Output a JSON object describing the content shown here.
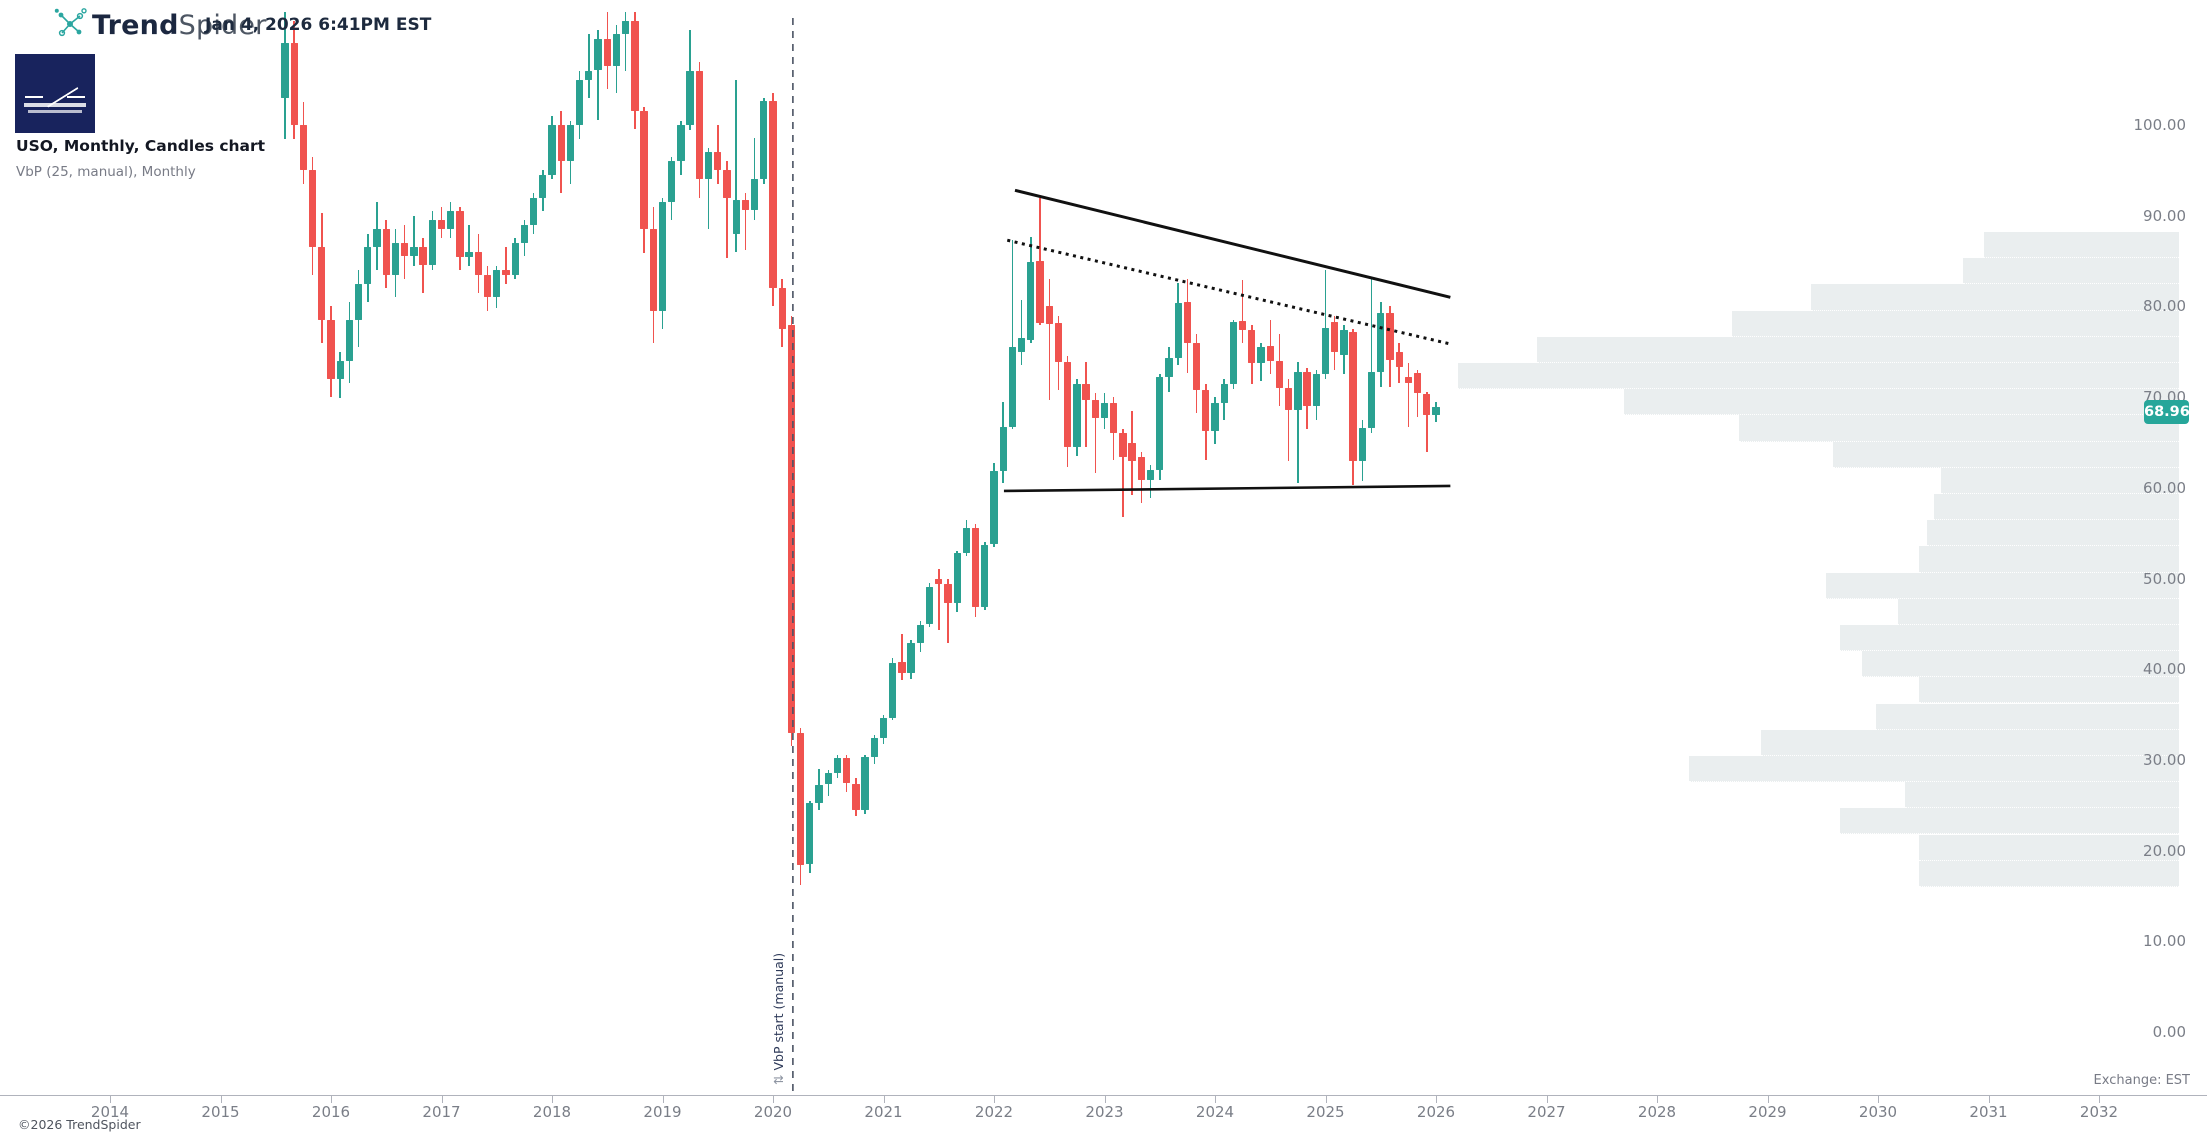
{
  "header": {
    "brand_bold": "Trend",
    "brand_light": "Spider",
    "timestamp": "Jan 4, 2026 6:41PM EST"
  },
  "titles": {
    "main": "USO, Monthly, Candles chart",
    "indicator": "VbP (25, manual), Monthly"
  },
  "footer": {
    "copyright": "©2026 TrendSpider",
    "exchange": "Exchange: EST"
  },
  "colors": {
    "candle_up": "#2aa191",
    "candle_down": "#f0534f",
    "badge_bg": "#26a69a",
    "vbp_bar": "#eaeeef",
    "trendline": "#111111",
    "anchor_line": "#4b5263",
    "axis_text": "#7a7e87",
    "brand_teal": "#2ba6a0",
    "logo_navy": "#18235d"
  },
  "chart_data": {
    "type": "candlestick",
    "symbol": "USO",
    "timeframe": "Monthly",
    "title": "USO, Monthly, Candles chart",
    "indicator": "VbP (25, manual), Monthly",
    "last_price": 68.96,
    "last_price_label": "68.96",
    "x_axis": {
      "years": [
        2014,
        2015,
        2016,
        2017,
        2018,
        2019,
        2020,
        2021,
        2022,
        2023,
        2024,
        2025,
        2026,
        2027,
        2028,
        2029,
        2030,
        2031,
        2032
      ]
    },
    "y_axis": {
      "ticks": [
        "100.00",
        "90.00",
        "80.00",
        "70.00",
        "60.00",
        "50.00",
        "40.00",
        "30.00",
        "20.00",
        "10.00",
        "0.00"
      ],
      "tick_values": [
        100,
        90,
        80,
        70,
        60,
        50,
        40,
        30,
        20,
        10,
        0
      ],
      "range": [
        0,
        112.5
      ],
      "grid": false,
      "side": "right"
    },
    "candle_format": [
      "month",
      "open",
      "high",
      "low",
      "close"
    ],
    "candles": [
      [
        "2015-08",
        103,
        112.5,
        98.5,
        109
      ],
      [
        "2015-09",
        109,
        111.5,
        98.5,
        100
      ],
      [
        "2015-10",
        100,
        102.5,
        93.5,
        95
      ],
      [
        "2015-11",
        95,
        96.5,
        83.5,
        86.5
      ],
      [
        "2015-12",
        86.5,
        90.3,
        76,
        78.5
      ],
      [
        "2016-01",
        78.5,
        80,
        70,
        72
      ],
      [
        "2016-02",
        72,
        75,
        69.9,
        74
      ],
      [
        "2016-03",
        74,
        80.5,
        71.5,
        78.5
      ],
      [
        "2016-04",
        78.5,
        84,
        75.5,
        82.5
      ],
      [
        "2016-05",
        82.5,
        88,
        80.5,
        86.5
      ],
      [
        "2016-06",
        86.5,
        91.5,
        84,
        88.5
      ],
      [
        "2016-07",
        88.5,
        89.5,
        82,
        83.5
      ],
      [
        "2016-08",
        83.5,
        88.5,
        81,
        87
      ],
      [
        "2016-09",
        87,
        89,
        83,
        85.5
      ],
      [
        "2016-10",
        85.5,
        90,
        84.5,
        86.5
      ],
      [
        "2016-11",
        86.5,
        87.5,
        81.5,
        84.5
      ],
      [
        "2016-12",
        84.5,
        90.5,
        84,
        89.5
      ],
      [
        "2017-01",
        89.5,
        91,
        87.5,
        88.5
      ],
      [
        "2017-02",
        88.5,
        91.5,
        87.5,
        90.5
      ],
      [
        "2017-03",
        90.5,
        91,
        84,
        85.5
      ],
      [
        "2017-04",
        85.5,
        89,
        84.5,
        86
      ],
      [
        "2017-05",
        86,
        88,
        81.5,
        83.5
      ],
      [
        "2017-06",
        83.5,
        84.5,
        79.5,
        81
      ],
      [
        "2017-07",
        81,
        84.5,
        79.8,
        84
      ],
      [
        "2017-08",
        84,
        86.5,
        82.5,
        83.5
      ],
      [
        "2017-09",
        83.5,
        87.5,
        83,
        87
      ],
      [
        "2017-10",
        87,
        89.5,
        85.5,
        89
      ],
      [
        "2017-11",
        89,
        92.5,
        88,
        92
      ],
      [
        "2017-12",
        92,
        95,
        90.5,
        94.5
      ],
      [
        "2018-01",
        94.5,
        101,
        94,
        100
      ],
      [
        "2018-02",
        100,
        101.5,
        92.5,
        96
      ],
      [
        "2018-03",
        96,
        100.5,
        93.5,
        100
      ],
      [
        "2018-04",
        100,
        106,
        98.5,
        105
      ],
      [
        "2018-05",
        105,
        110,
        103,
        106
      ],
      [
        "2018-06",
        106,
        110.5,
        100.5,
        109.5
      ],
      [
        "2018-07",
        109.5,
        112.5,
        104,
        106.5
      ],
      [
        "2018-08",
        106.5,
        111,
        103.5,
        110
      ],
      [
        "2018-09",
        110,
        112.5,
        106,
        111.5
      ],
      [
        "2018-10",
        111.5,
        112.5,
        99.5,
        101.5
      ],
      [
        "2018-11",
        101.5,
        102,
        85.9,
        88.5
      ],
      [
        "2018-12",
        88.5,
        91,
        76,
        79.5
      ],
      [
        "2019-01",
        79.5,
        92,
        77.5,
        91.5
      ],
      [
        "2019-02",
        91.5,
        96.5,
        89.5,
        96
      ],
      [
        "2019-03",
        96,
        100.5,
        94.5,
        100
      ],
      [
        "2019-04",
        100,
        110.5,
        99.5,
        106
      ],
      [
        "2019-05",
        106,
        107,
        92,
        94
      ],
      [
        "2019-06",
        94,
        97.5,
        88.5,
        97
      ],
      [
        "2019-07",
        97,
        100,
        93.5,
        95
      ],
      [
        "2019-08",
        95,
        96,
        85.3,
        92
      ],
      [
        "2019-09",
        88,
        105,
        86,
        91.7
      ],
      [
        "2019-10",
        91.7,
        92.5,
        86.2,
        90.6
      ],
      [
        "2019-11",
        90.6,
        98.6,
        89.5,
        94
      ],
      [
        "2019-12",
        94,
        103,
        93.5,
        102.7
      ],
      [
        "2020-01",
        102.7,
        103.5,
        80,
        82
      ],
      [
        "2020-02",
        82,
        83,
        75.5,
        77.5
      ],
      [
        "2020-03",
        78,
        79,
        31.5,
        33
      ],
      [
        "2020-04",
        33,
        33.5,
        16.2,
        18.4
      ],
      [
        "2020-05",
        18.5,
        25.5,
        17.5,
        25.2
      ],
      [
        "2020-06",
        25.2,
        29,
        24.5,
        27.2
      ],
      [
        "2020-07",
        27.3,
        28.9,
        26,
        28.6
      ],
      [
        "2020-08",
        28.6,
        30.5,
        28,
        30.2
      ],
      [
        "2020-09",
        30.2,
        30.5,
        26.5,
        27.5
      ],
      [
        "2020-10",
        27.4,
        28,
        23.8,
        24.5
      ],
      [
        "2020-11",
        24.5,
        30.5,
        24,
        30.3
      ],
      [
        "2020-12",
        30.3,
        32.8,
        29.5,
        32.4
      ],
      [
        "2021-01",
        32.4,
        35,
        31.8,
        34.6
      ],
      [
        "2021-02",
        34.6,
        41.2,
        34.4,
        40.7
      ],
      [
        "2021-03",
        40.8,
        43.9,
        38.8,
        39.6
      ],
      [
        "2021-04",
        39.6,
        43.2,
        38.9,
        42.9
      ],
      [
        "2021-05",
        42.9,
        45.3,
        41.9,
        44.9
      ],
      [
        "2021-06",
        45,
        49.5,
        44.7,
        49.1
      ],
      [
        "2021-07",
        50,
        51,
        44.3,
        49.4
      ],
      [
        "2021-08",
        49.4,
        50,
        42.9,
        47.3
      ],
      [
        "2021-09",
        47.3,
        53,
        46.3,
        52.8
      ],
      [
        "2021-10",
        52.8,
        56.5,
        52.5,
        55.6
      ],
      [
        "2021-11",
        55.6,
        56,
        45.7,
        46.9
      ],
      [
        "2021-12",
        46.9,
        54,
        46.5,
        53.7
      ],
      [
        "2022-01",
        53.8,
        62.7,
        53.5,
        61.9
      ],
      [
        "2022-02",
        61.9,
        69.5,
        60.5,
        66.7
      ],
      [
        "2022-03",
        66.7,
        87.3,
        66.5,
        75.5
      ],
      [
        "2022-04",
        75,
        80.7,
        73.5,
        76.5
      ],
      [
        "2022-05",
        76.3,
        87.7,
        76,
        84.9
      ],
      [
        "2022-06",
        85,
        92,
        78,
        78.2
      ],
      [
        "2022-07",
        80,
        83,
        69.7,
        78
      ],
      [
        "2022-08",
        78.2,
        79,
        70.8,
        73.9
      ],
      [
        "2022-09",
        73.9,
        74.5,
        62.3,
        64.5
      ],
      [
        "2022-10",
        64.5,
        72,
        63.5,
        71.5
      ],
      [
        "2022-11",
        71.5,
        73.9,
        64.5,
        69.7
      ],
      [
        "2022-12",
        69.7,
        70.5,
        61.6,
        67.7
      ],
      [
        "2023-01",
        67.7,
        70.5,
        66.5,
        69.3
      ],
      [
        "2023-02",
        69.3,
        70,
        63.1,
        66
      ],
      [
        "2023-03",
        66,
        66.5,
        56.8,
        63.4
      ],
      [
        "2023-04",
        64.9,
        68.5,
        59.2,
        63
      ],
      [
        "2023-05",
        63.4,
        64,
        58.3,
        60.9
      ],
      [
        "2023-06",
        60.9,
        62.5,
        58.9,
        62
      ],
      [
        "2023-07",
        62,
        72.5,
        60.9,
        72.2
      ],
      [
        "2023-08",
        72.2,
        75.5,
        70.5,
        74.3
      ],
      [
        "2023-09",
        74.3,
        82.6,
        73.5,
        80.4
      ],
      [
        "2023-10",
        80.5,
        83,
        72.7,
        76
      ],
      [
        "2023-11",
        76,
        77,
        68.2,
        70.8
      ],
      [
        "2023-12",
        70.8,
        71.5,
        63.1,
        66.2
      ],
      [
        "2024-01",
        66.2,
        70,
        64.8,
        69.3
      ],
      [
        "2024-02",
        69.3,
        72,
        67.5,
        71.4
      ],
      [
        "2024-03",
        71.4,
        78.5,
        70.9,
        78.3
      ],
      [
        "2024-04",
        78.4,
        82.9,
        76,
        77.4
      ],
      [
        "2024-05",
        77.4,
        78,
        71.5,
        73.8
      ],
      [
        "2024-06",
        73.8,
        76,
        71.8,
        75.5
      ],
      [
        "2024-07",
        75.6,
        78.5,
        72.5,
        74
      ],
      [
        "2024-08",
        74,
        77,
        69,
        71
      ],
      [
        "2024-09",
        71,
        72,
        63,
        68.6
      ],
      [
        "2024-10",
        68.6,
        73.9,
        60.5,
        72.8
      ],
      [
        "2024-11",
        72.8,
        73.2,
        66.5,
        69
      ],
      [
        "2024-12",
        69,
        73,
        67.5,
        72.5
      ],
      [
        "2025-01",
        72.5,
        84,
        72,
        77.6
      ],
      [
        "2025-02",
        78.3,
        79,
        73,
        75
      ],
      [
        "2025-03",
        74.6,
        78,
        72.5,
        77.4
      ],
      [
        "2025-04",
        77.2,
        77.5,
        60.3,
        62.9
      ],
      [
        "2025-05",
        62.9,
        67.5,
        60.8,
        66.6
      ],
      [
        "2025-06",
        66.6,
        83,
        66,
        72.8
      ],
      [
        "2025-07",
        72.8,
        80.5,
        71.1,
        79.3
      ],
      [
        "2025-08",
        79.3,
        80,
        71.1,
        74.1
      ],
      [
        "2025-09",
        75,
        76,
        71.5,
        73.3
      ],
      [
        "2025-10",
        72.2,
        73.8,
        66.7,
        71.5
      ],
      [
        "2025-11",
        72.7,
        73,
        67.8,
        70.4
      ],
      [
        "2025-12",
        70.4,
        70.6,
        64,
        68
      ],
      [
        "2026-01",
        68,
        69.5,
        67.3,
        68.96
      ]
    ],
    "volume_profile": {
      "rows": 25,
      "price_top": 88.2,
      "price_bottom": 16.0,
      "relative_widths": [
        0.27,
        0.3,
        0.51,
        0.62,
        0.89,
        1.0,
        0.77,
        0.61,
        0.48,
        0.33,
        0.34,
        0.35,
        0.36,
        0.49,
        0.39,
        0.47,
        0.44,
        0.36,
        0.42,
        0.58,
        0.68,
        0.38,
        0.47,
        0.36,
        0.36
      ]
    },
    "drawings": {
      "upper_trendline": {
        "year1": 2022.19,
        "price1": 92.8,
        "year2": 2026.13,
        "price2": 81.0,
        "style": "solid"
      },
      "dotted_trendline": {
        "year1": 2022.12,
        "price1": 87.3,
        "year2": 2026.15,
        "price2": 75.8,
        "style": "dotted"
      },
      "support_line": {
        "year1": 2022.09,
        "price1": 59.65,
        "year2": 2026.13,
        "price2": 60.2,
        "style": "solid"
      },
      "vbp_anchor": {
        "year": 2020.18,
        "label": "VbP start (manual)",
        "glyph": "⇅"
      }
    },
    "legend_position": "none",
    "background": "#ffffff"
  }
}
